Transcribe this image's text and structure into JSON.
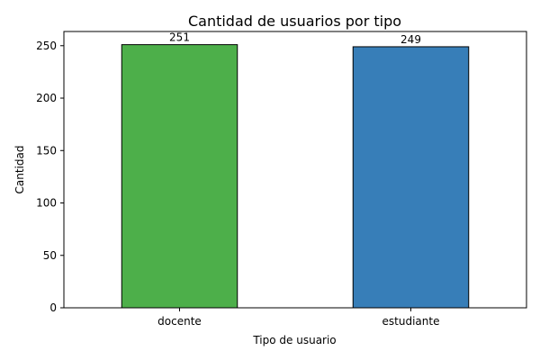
{
  "chart_data": {
    "type": "bar",
    "title": "Cantidad de usuarios por tipo",
    "xlabel": "Tipo de usuario",
    "ylabel": "Cantidad",
    "categories": [
      "docente",
      "estudiante"
    ],
    "values": [
      251,
      249
    ],
    "data_labels": [
      "251",
      "249"
    ],
    "colors": [
      "#4daf4a",
      "#377eb8"
    ],
    "edge_color": "#000000",
    "ylim": [
      0,
      263.55
    ],
    "yticks": [
      0,
      50,
      100,
      150,
      200,
      250
    ],
    "ytick_labels": [
      "0",
      "50",
      "100",
      "150",
      "200",
      "250"
    ],
    "grid": false,
    "legend": false
  }
}
